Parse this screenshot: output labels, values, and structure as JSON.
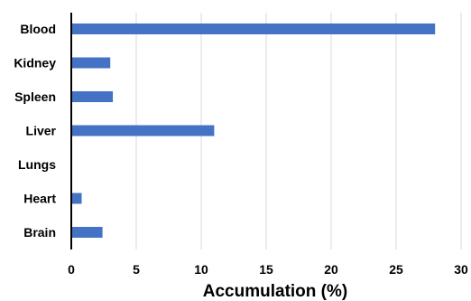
{
  "chart_data": {
    "type": "bar",
    "orientation": "horizontal",
    "categories": [
      "Blood",
      "Kidney",
      "Spleen",
      "Liver",
      "Lungs",
      "Heart",
      "Brain"
    ],
    "values": [
      28.0,
      3.0,
      3.2,
      11.0,
      0.0,
      0.8,
      2.4
    ],
    "title": "",
    "xlabel": "Accumulation (%)",
    "ylabel": "",
    "xlim": [
      0,
      30
    ],
    "xticks": [
      "0",
      "5",
      "10",
      "15",
      "20",
      "25",
      "30"
    ],
    "grid": "vertical",
    "legend": "none",
    "bar_color": "#4472c4",
    "grid_color": "#d9d9d9"
  }
}
